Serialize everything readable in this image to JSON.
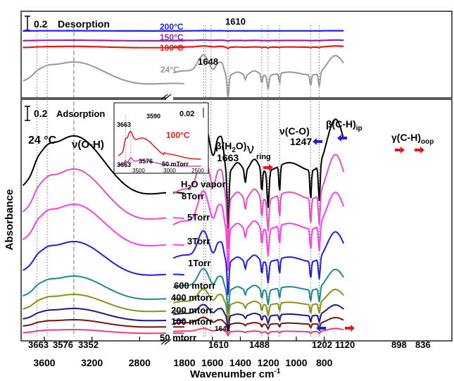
{
  "chart_data": {
    "type": "line",
    "xlabel": "Wavenumber cm",
    "xlabel_sup": "-1",
    "ylabel": "Absorbance",
    "x_axis": {
      "reversed": true,
      "break": true,
      "segments": [
        {
          "range": [
            3800,
            2400
          ],
          "ticks": [
            3600,
            3200,
            2800
          ]
        },
        {
          "range": [
            1900,
            650
          ],
          "ticks": [
            1800,
            1600,
            1400,
            1200,
            1000,
            800
          ]
        }
      ]
    },
    "panels": {
      "desorption": {
        "scale_bar": "0.2",
        "title": "Desorption",
        "series": [
          {
            "name": "200°C",
            "color": "#1f1fe6"
          },
          {
            "name": "150°C",
            "color": "#8a2ba0"
          },
          {
            "name": "100°C",
            "color": "#e31a1c"
          },
          {
            "name": "24°C",
            "color": "#999999"
          }
        ],
        "peak_labels": [
          "1610",
          "1648"
        ]
      },
      "adsorption": {
        "scale_bar": "0.2",
        "title": "Adsorption",
        "temperature": "24 °C",
        "legend_title": "H2O vapor",
        "series": [
          {
            "name": "8Torr",
            "color": "#000000"
          },
          {
            "name": "5Torr",
            "color": "#e84ec0"
          },
          {
            "name": "3Torr",
            "color": "#ff3cf0"
          },
          {
            "name": "1Torr",
            "color": "#1f1fe6"
          },
          {
            "name": "600 mtorr",
            "color": "#1a8a8a"
          },
          {
            "name": "400 mtorr",
            "color": "#8f8f12"
          },
          {
            "name": "200 mtorr",
            "color": "#1a1a80"
          },
          {
            "name": "100 mtorr",
            "color": "#7a1212"
          },
          {
            "name": "50 mtorr",
            "color": "#e8407a"
          }
        ],
        "band_labels": {
          "oh": "ν(O-H)",
          "h2o": "β(H",
          "h2o_sub": "2",
          "h2o_end": "O)",
          "h2o_value": "1663",
          "ring": "ν",
          "ring_sub": "ring",
          "co": "ν(C-O)",
          "co_value": "1247",
          "ch_ip": "β(C-H)",
          "ch_ip_sub": "ip",
          "ch_oop": "γ(C-H)",
          "ch_oop_sub": "oop"
        },
        "bottom_labels": [
          "3663",
          "3576",
          "3352",
          "1610",
          "1641",
          "1488",
          "1202",
          "1120",
          "898",
          "836"
        ]
      }
    },
    "inset": {
      "x_ticks": [
        3500,
        3000,
        2500
      ],
      "scale_bar": "0.02",
      "labels": [
        "3590",
        "3663",
        "3663",
        "3576"
      ],
      "series": [
        {
          "name": "100°C",
          "color": "#e31a1c"
        },
        {
          "name": "50 mTorr",
          "color": "#cc22cc"
        }
      ]
    }
  }
}
